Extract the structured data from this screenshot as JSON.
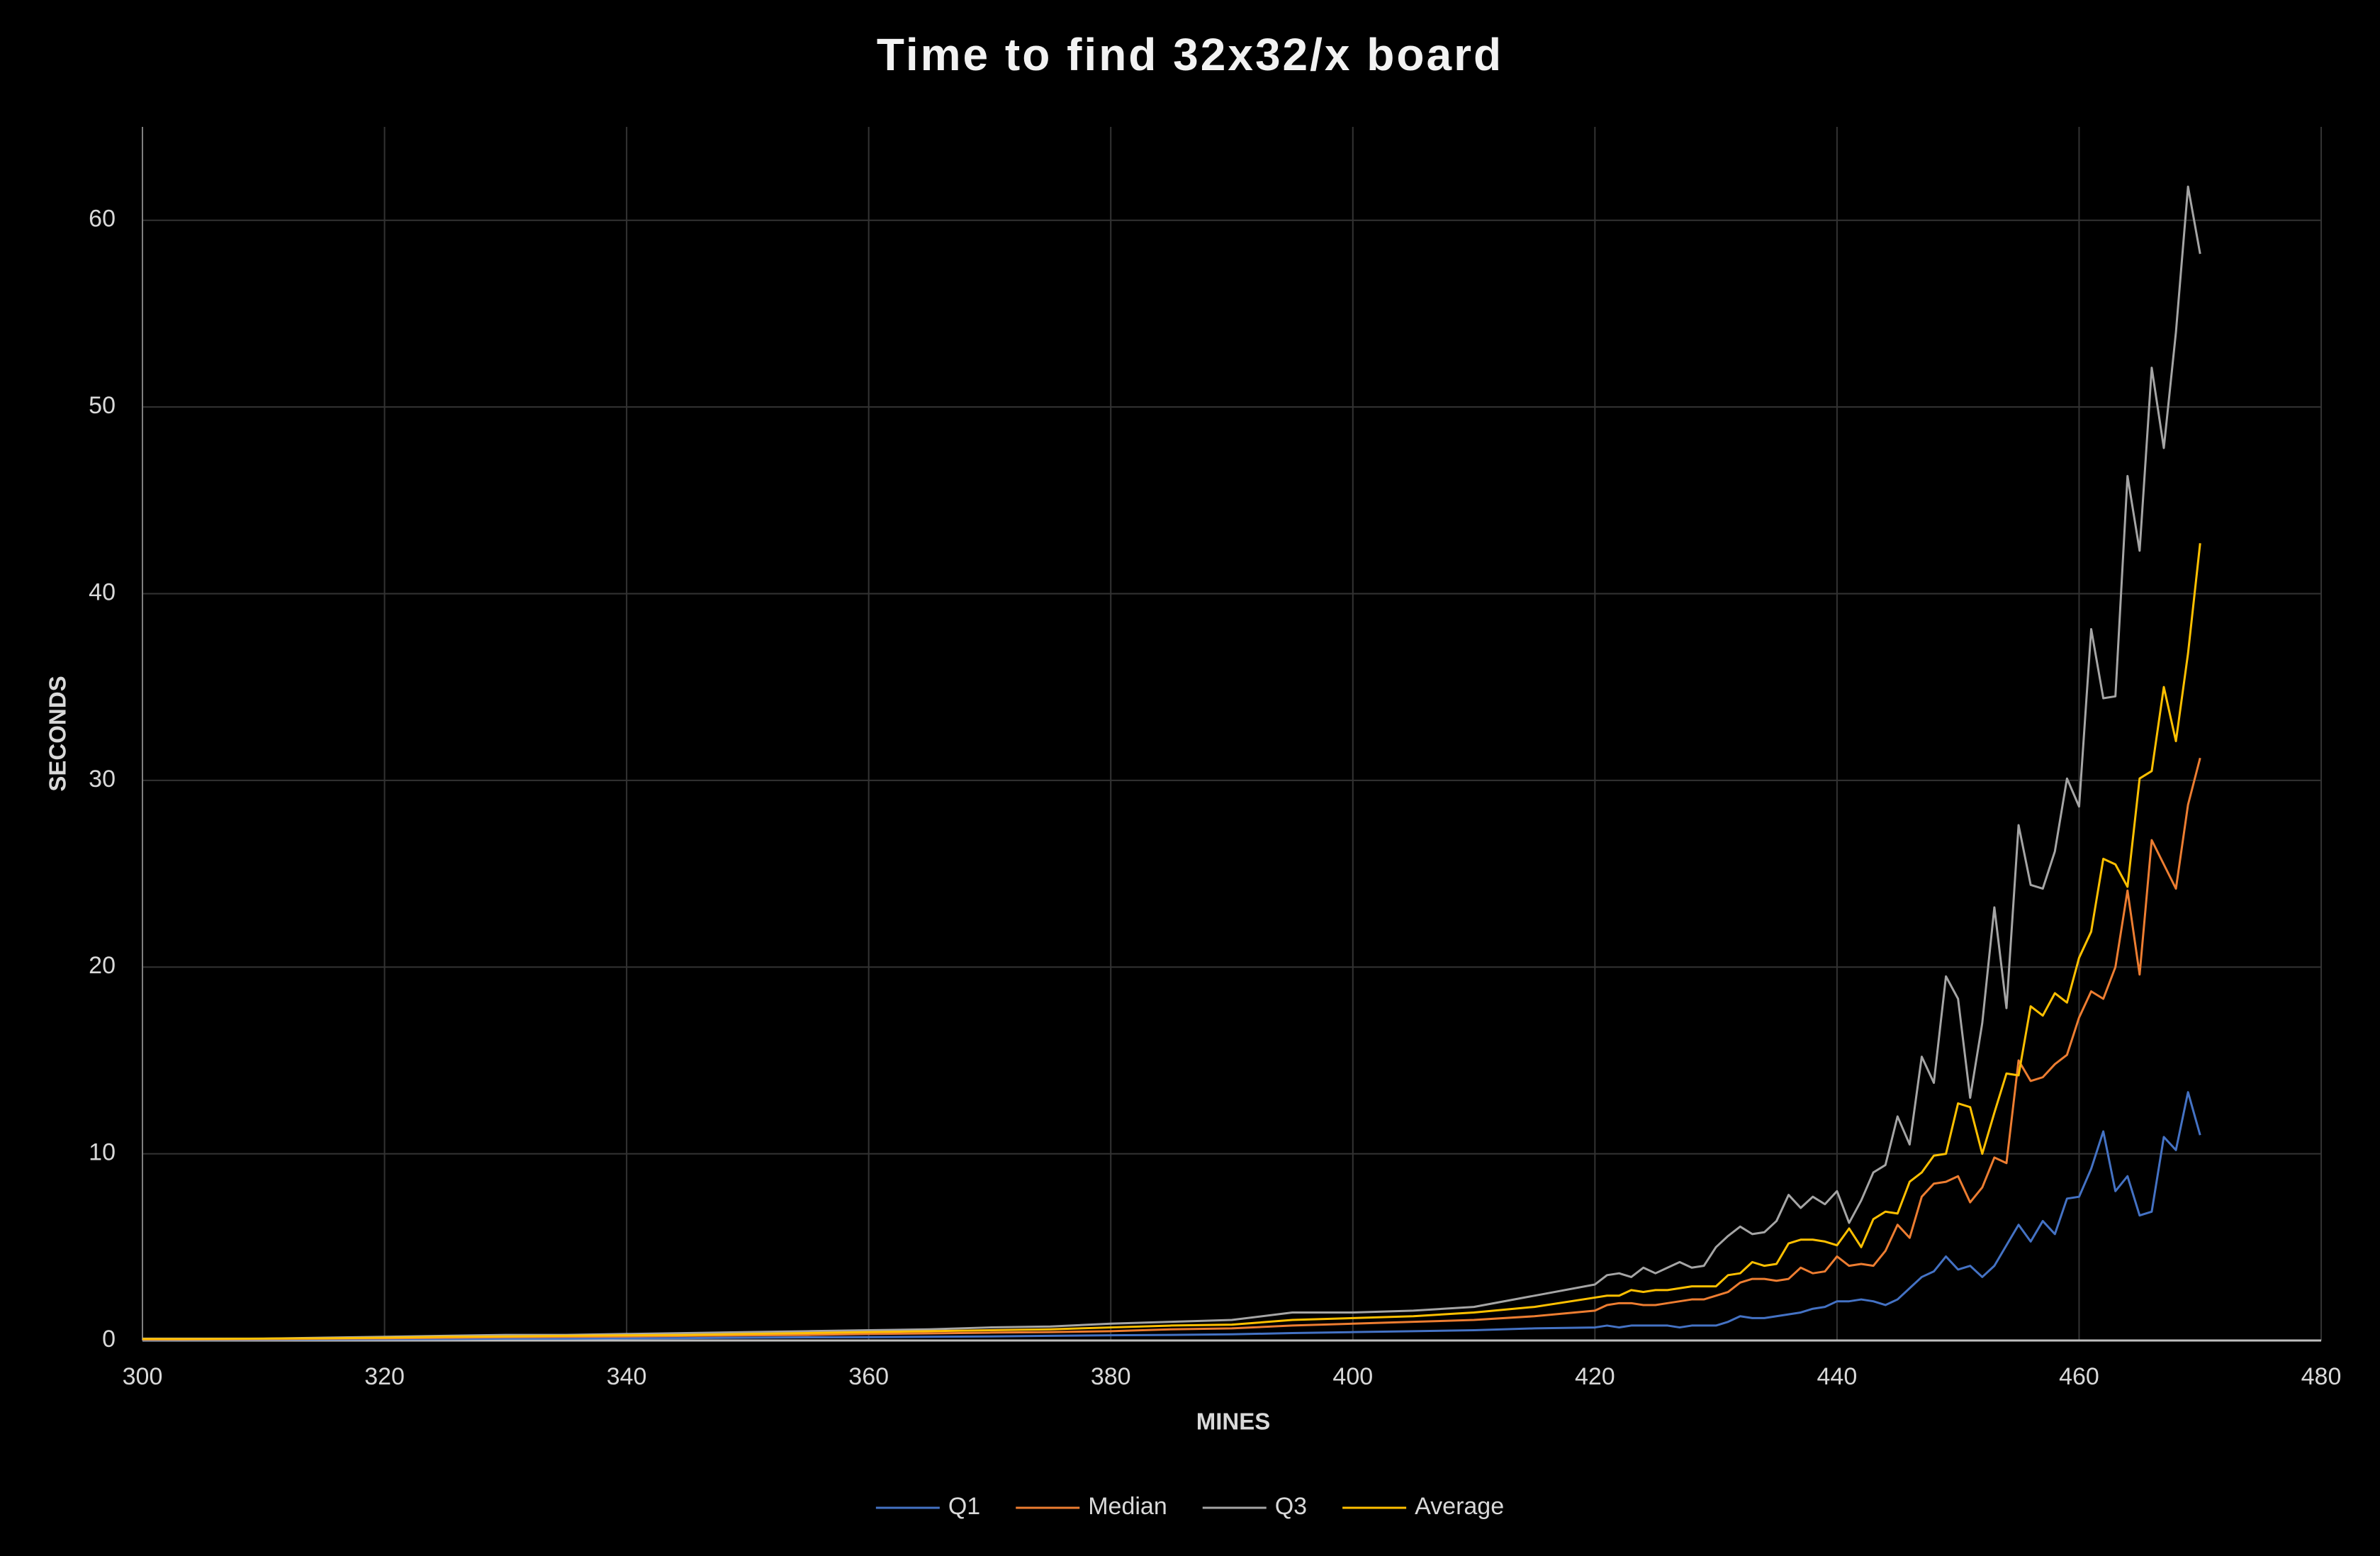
{
  "chart_data": {
    "type": "line",
    "title": "Time to find 32x32/x board",
    "x_label": "MINES",
    "y_label": "SECONDS",
    "x": [
      300,
      305,
      310,
      315,
      320,
      325,
      330,
      335,
      340,
      345,
      350,
      355,
      360,
      365,
      370,
      375,
      380,
      385,
      390,
      395,
      400,
      405,
      410,
      415,
      420,
      421,
      422,
      423,
      424,
      425,
      426,
      427,
      428,
      429,
      430,
      431,
      432,
      433,
      434,
      435,
      436,
      437,
      438,
      439,
      440,
      441,
      442,
      443,
      444,
      445,
      446,
      447,
      448,
      449,
      450,
      451,
      452,
      453,
      454,
      455,
      456,
      457,
      458,
      459,
      460,
      461,
      462,
      463,
      464,
      465,
      466,
      467,
      468,
      469,
      470
    ],
    "series": [
      {
        "name": "Q1",
        "color": "#4472c4",
        "values": [
          0.03,
          0.04,
          0.05,
          0.06,
          0.07,
          0.08,
          0.1,
          0.1,
          0.12,
          0.13,
          0.15,
          0.17,
          0.18,
          0.2,
          0.22,
          0.25,
          0.28,
          0.3,
          0.33,
          0.4,
          0.45,
          0.5,
          0.55,
          0.65,
          0.7,
          0.8,
          0.7,
          0.8,
          0.8,
          0.8,
          0.8,
          0.7,
          0.8,
          0.8,
          0.8,
          1.0,
          1.3,
          1.2,
          1.2,
          1.3,
          1.4,
          1.5,
          1.7,
          1.8,
          2.1,
          2.1,
          2.2,
          2.1,
          1.9,
          2.2,
          2.8,
          3.4,
          3.7,
          4.5,
          3.8,
          4.0,
          3.4,
          4.0,
          5.1,
          6.2,
          5.3,
          6.4,
          5.7,
          7.6,
          7.7,
          9.2,
          11.2,
          8.0,
          8.8,
          6.7,
          6.9,
          10.9,
          10.2,
          13.3,
          11.0
        ]
      },
      {
        "name": "Median",
        "color": "#ed7d31",
        "values": [
          0.05,
          0.06,
          0.08,
          0.1,
          0.12,
          0.15,
          0.18,
          0.2,
          0.22,
          0.25,
          0.28,
          0.3,
          0.35,
          0.38,
          0.42,
          0.45,
          0.5,
          0.6,
          0.65,
          0.8,
          0.9,
          1.0,
          1.1,
          1.3,
          1.6,
          1.9,
          2.0,
          2.0,
          1.9,
          1.9,
          2.0,
          2.1,
          2.2,
          2.2,
          2.4,
          2.6,
          3.1,
          3.3,
          3.3,
          3.2,
          3.3,
          3.9,
          3.6,
          3.7,
          4.5,
          4.0,
          4.1,
          4.0,
          4.8,
          6.2,
          5.5,
          7.7,
          8.4,
          8.5,
          8.8,
          7.4,
          8.2,
          9.8,
          9.5,
          15.0,
          13.9,
          14.1,
          14.8,
          15.3,
          17.3,
          18.7,
          18.3,
          20.0,
          24.1,
          19.6,
          26.8,
          25.5,
          24.2,
          28.7,
          31.2
        ]
      },
      {
        "name": "Q3",
        "color": "#a5a5a5",
        "values": [
          0.1,
          0.1,
          0.1,
          0.15,
          0.2,
          0.25,
          0.3,
          0.3,
          0.35,
          0.4,
          0.45,
          0.5,
          0.55,
          0.6,
          0.7,
          0.75,
          0.9,
          1.0,
          1.1,
          1.5,
          1.5,
          1.6,
          1.8,
          2.4,
          3.0,
          3.5,
          3.6,
          3.4,
          3.9,
          3.6,
          3.9,
          4.2,
          3.9,
          4.0,
          5.0,
          5.6,
          6.1,
          5.7,
          5.8,
          6.4,
          7.8,
          7.1,
          7.7,
          7.3,
          8.0,
          6.3,
          7.5,
          9.0,
          9.4,
          12.0,
          10.5,
          15.2,
          13.8,
          19.5,
          18.3,
          13.0,
          17.0,
          23.2,
          17.8,
          27.6,
          24.4,
          24.2,
          26.2,
          30.1,
          28.6,
          38.1,
          34.4,
          34.5,
          46.3,
          42.3,
          52.1,
          47.8,
          54.0,
          61.8,
          58.2
        ]
      },
      {
        "name": "Average",
        "color": "#ffc000",
        "values": [
          0.08,
          0.08,
          0.1,
          0.12,
          0.15,
          0.2,
          0.22,
          0.25,
          0.28,
          0.3,
          0.35,
          0.4,
          0.45,
          0.5,
          0.55,
          0.6,
          0.7,
          0.8,
          0.85,
          1.1,
          1.2,
          1.3,
          1.5,
          1.8,
          2.3,
          2.4,
          2.4,
          2.7,
          2.6,
          2.7,
          2.7,
          2.8,
          2.9,
          2.9,
          2.9,
          3.5,
          3.6,
          4.2,
          4.0,
          4.1,
          5.2,
          5.4,
          5.4,
          5.3,
          5.1,
          6.0,
          5.0,
          6.5,
          6.9,
          6.8,
          8.5,
          9.0,
          9.9,
          10.0,
          12.7,
          12.5,
          10.0,
          12.2,
          14.3,
          14.2,
          17.9,
          17.4,
          18.6,
          18.1,
          20.5,
          21.9,
          25.8,
          25.5,
          24.3,
          30.1,
          30.5,
          35.0,
          32.1,
          36.8,
          42.7
        ]
      }
    ],
    "xlim": [
      300,
      480
    ],
    "xticks": [
      300,
      320,
      340,
      360,
      380,
      400,
      420,
      440,
      460,
      480
    ],
    "ylim": [
      0,
      65
    ],
    "yticks": [
      0,
      10,
      20,
      30,
      40,
      50,
      60
    ],
    "grid": true,
    "legend": "bottom"
  }
}
